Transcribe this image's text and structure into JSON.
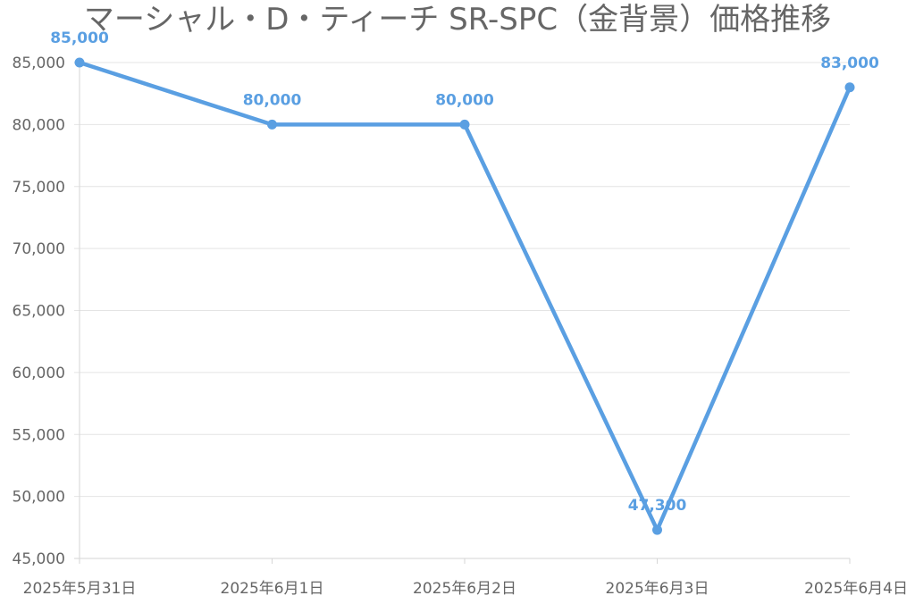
{
  "chart_data": {
    "type": "line",
    "title": "マーシャル・D・ティーチ SR-SPC（金背景）価格推移",
    "xlabel": "",
    "ylabel": "",
    "categories": [
      "2025年5月31日",
      "2025年6月1日",
      "2025年6月2日",
      "2025年6月3日",
      "2025年6月4日"
    ],
    "series": [
      {
        "values": [
          85000,
          80000,
          80000,
          47300,
          83000
        ],
        "color": "#5a9fe2"
      }
    ],
    "data_labels": [
      "85,000",
      "80,000",
      "80,000",
      "47,300",
      "83,000"
    ],
    "ylim": [
      45000,
      85000
    ],
    "yticks": [
      45000,
      50000,
      55000,
      60000,
      65000,
      70000,
      75000,
      80000,
      85000
    ],
    "ytick_labels": [
      "45,000",
      "50,000",
      "55,000",
      "60,000",
      "65,000",
      "70,000",
      "75,000",
      "80,000",
      "85,000"
    ],
    "grid": true,
    "legend": "none"
  }
}
